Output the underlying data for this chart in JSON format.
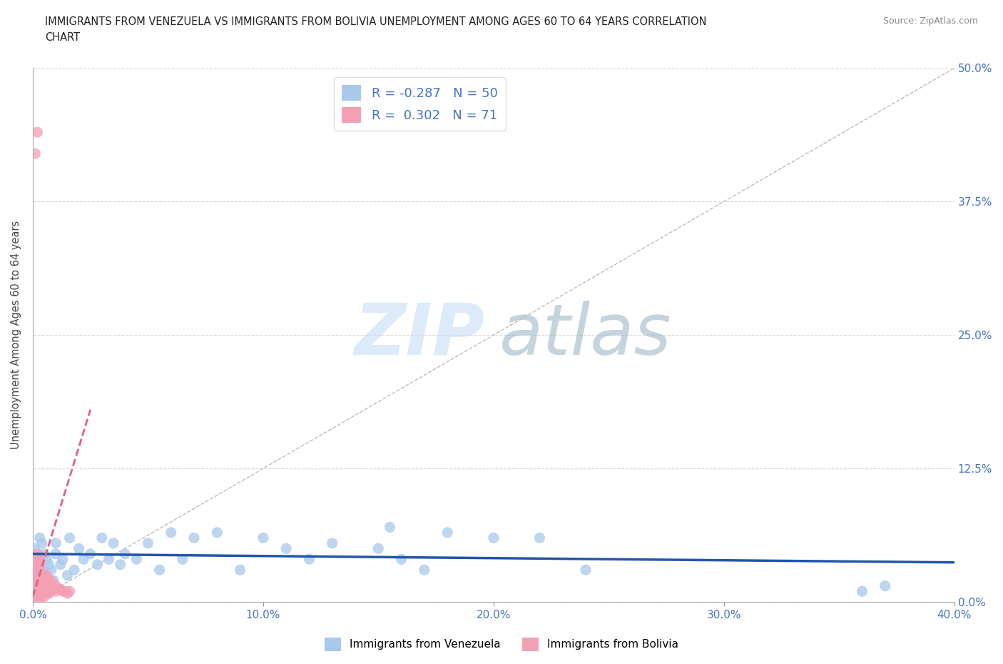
{
  "title_line1": "IMMIGRANTS FROM VENEZUELA VS IMMIGRANTS FROM BOLIVIA UNEMPLOYMENT AMONG AGES 60 TO 64 YEARS CORRELATION",
  "title_line2": "CHART",
  "source": "Source: ZipAtlas.com",
  "ylabel": "Unemployment Among Ages 60 to 64 years",
  "xlim": [
    0.0,
    0.4
  ],
  "ylim": [
    0.0,
    0.5
  ],
  "xticks": [
    0.0,
    0.1,
    0.2,
    0.3,
    0.4
  ],
  "yticks": [
    0.0,
    0.125,
    0.25,
    0.375,
    0.5
  ],
  "ytick_labels": [
    "0.0%",
    "12.5%",
    "25.0%",
    "37.5%",
    "50.0%"
  ],
  "xtick_labels": [
    "0.0%",
    "10.0%",
    "20.0%",
    "30.0%",
    "40.0%"
  ],
  "legend_labels": [
    "Immigrants from Venezuela",
    "Immigrants from Bolivia"
  ],
  "legend_r": [
    -0.287,
    0.302
  ],
  "legend_n": [
    50,
    71
  ],
  "blue_color": "#A8C8EC",
  "pink_color": "#F4A0B4",
  "trend_blue": "#2255AA",
  "trend_pink": "#E06080",
  "watermark_zip": "ZIP",
  "watermark_atlas": "atlas",
  "background_color": "#FFFFFF",
  "grid_color": "#CCCCCC",
  "axis_color": "#4472C4",
  "venezuela_x": [
    0.001,
    0.002,
    0.003,
    0.003,
    0.004,
    0.004,
    0.005,
    0.005,
    0.006,
    0.007,
    0.008,
    0.009,
    0.01,
    0.01,
    0.012,
    0.013,
    0.015,
    0.016,
    0.018,
    0.02,
    0.022,
    0.025,
    0.028,
    0.03,
    0.033,
    0.035,
    0.038,
    0.04,
    0.045,
    0.05,
    0.055,
    0.06,
    0.065,
    0.07,
    0.08,
    0.09,
    0.1,
    0.11,
    0.12,
    0.13,
    0.15,
    0.155,
    0.16,
    0.17,
    0.18,
    0.2,
    0.22,
    0.24,
    0.36,
    0.37
  ],
  "venezuela_y": [
    0.05,
    0.035,
    0.04,
    0.06,
    0.03,
    0.055,
    0.025,
    0.045,
    0.04,
    0.035,
    0.03,
    0.02,
    0.045,
    0.055,
    0.035,
    0.04,
    0.025,
    0.06,
    0.03,
    0.05,
    0.04,
    0.045,
    0.035,
    0.06,
    0.04,
    0.055,
    0.035,
    0.045,
    0.04,
    0.055,
    0.03,
    0.065,
    0.04,
    0.06,
    0.065,
    0.03,
    0.06,
    0.05,
    0.04,
    0.055,
    0.05,
    0.07,
    0.04,
    0.03,
    0.065,
    0.06,
    0.06,
    0.03,
    0.01,
    0.015
  ],
  "bolivia_x": [
    0.0,
    0.0,
    0.001,
    0.001,
    0.001,
    0.001,
    0.001,
    0.001,
    0.001,
    0.001,
    0.001,
    0.002,
    0.002,
    0.002,
    0.002,
    0.002,
    0.002,
    0.002,
    0.002,
    0.002,
    0.002,
    0.002,
    0.002,
    0.003,
    0.003,
    0.003,
    0.003,
    0.003,
    0.003,
    0.003,
    0.003,
    0.003,
    0.003,
    0.003,
    0.004,
    0.004,
    0.004,
    0.004,
    0.004,
    0.004,
    0.004,
    0.005,
    0.005,
    0.005,
    0.005,
    0.005,
    0.005,
    0.006,
    0.006,
    0.006,
    0.006,
    0.006,
    0.007,
    0.007,
    0.007,
    0.007,
    0.008,
    0.008,
    0.008,
    0.008,
    0.009,
    0.01,
    0.01,
    0.011,
    0.012,
    0.013,
    0.014,
    0.015,
    0.016,
    0.002,
    0.001
  ],
  "bolivia_y": [
    0.01,
    0.005,
    0.005,
    0.008,
    0.01,
    0.012,
    0.015,
    0.018,
    0.02,
    0.025,
    0.03,
    0.005,
    0.008,
    0.01,
    0.012,
    0.015,
    0.018,
    0.02,
    0.025,
    0.03,
    0.035,
    0.04,
    0.045,
    0.005,
    0.008,
    0.01,
    0.012,
    0.015,
    0.018,
    0.02,
    0.025,
    0.03,
    0.035,
    0.04,
    0.005,
    0.008,
    0.01,
    0.012,
    0.015,
    0.018,
    0.025,
    0.005,
    0.008,
    0.01,
    0.015,
    0.018,
    0.025,
    0.008,
    0.01,
    0.015,
    0.018,
    0.025,
    0.008,
    0.01,
    0.015,
    0.02,
    0.01,
    0.012,
    0.015,
    0.02,
    0.012,
    0.01,
    0.015,
    0.012,
    0.012,
    0.01,
    0.01,
    0.008,
    0.01,
    0.44,
    0.42
  ],
  "bolivia_trend_x": [
    0.0,
    0.025
  ],
  "bolivia_trend_y": [
    0.005,
    0.18
  ]
}
